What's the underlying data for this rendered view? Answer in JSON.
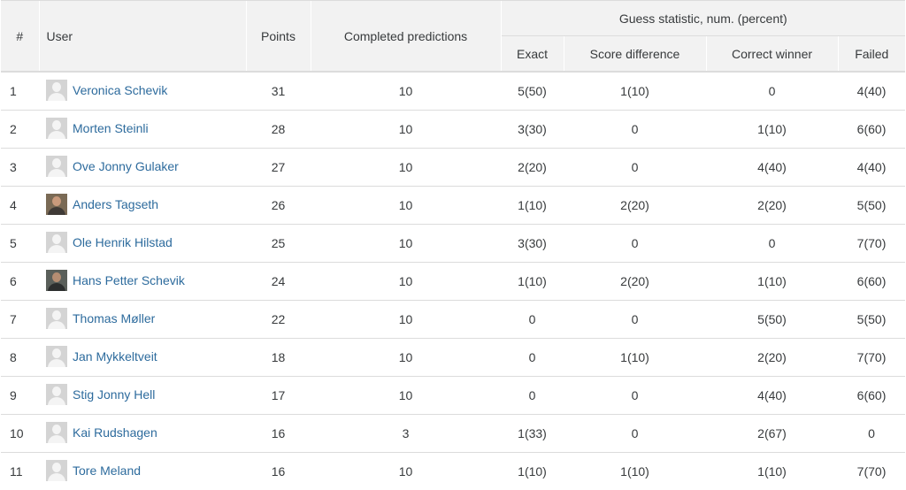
{
  "header": {
    "rank": "#",
    "user": "User",
    "points": "Points",
    "completed": "Completed predictions",
    "guess_group": "Guess statistic, num. (percent)",
    "exact": "Exact",
    "score_difference": "Score difference",
    "correct_winner": "Correct winner",
    "failed": "Failed"
  },
  "rows": [
    {
      "rank": "1",
      "user": "Veronica Schevik",
      "avatar": "default-avatar-icon",
      "points": "31",
      "completed": "10",
      "exact": "5(50)",
      "score_diff": "1(10)",
      "winner": "0",
      "failed": "4(40)"
    },
    {
      "rank": "2",
      "user": "Morten Steinli",
      "avatar": "default-avatar-icon",
      "points": "28",
      "completed": "10",
      "exact": "3(30)",
      "score_diff": "0",
      "winner": "1(10)",
      "failed": "6(60)"
    },
    {
      "rank": "3",
      "user": "Ove Jonny Gulaker",
      "avatar": "default-avatar-icon",
      "points": "27",
      "completed": "10",
      "exact": "2(20)",
      "score_diff": "0",
      "winner": "4(40)",
      "failed": "4(40)"
    },
    {
      "rank": "4",
      "user": "Anders Tagseth",
      "avatar": "photo-avatar",
      "points": "26",
      "completed": "10",
      "exact": "1(10)",
      "score_diff": "2(20)",
      "winner": "2(20)",
      "failed": "5(50)"
    },
    {
      "rank": "5",
      "user": "Ole Henrik Hilstad",
      "avatar": "default-avatar-icon",
      "points": "25",
      "completed": "10",
      "exact": "3(30)",
      "score_diff": "0",
      "winner": "0",
      "failed": "7(70)"
    },
    {
      "rank": "6",
      "user": "Hans Petter Schevik",
      "avatar": "photo-avatar",
      "points": "24",
      "completed": "10",
      "exact": "1(10)",
      "score_diff": "2(20)",
      "winner": "1(10)",
      "failed": "6(60)"
    },
    {
      "rank": "7",
      "user": "Thomas Møller",
      "avatar": "default-avatar-icon",
      "points": "22",
      "completed": "10",
      "exact": "0",
      "score_diff": "0",
      "winner": "5(50)",
      "failed": "5(50)"
    },
    {
      "rank": "8",
      "user": "Jan Mykkeltveit",
      "avatar": "default-avatar-icon",
      "points": "18",
      "completed": "10",
      "exact": "0",
      "score_diff": "1(10)",
      "winner": "2(20)",
      "failed": "7(70)"
    },
    {
      "rank": "9",
      "user": "Stig Jonny Hell",
      "avatar": "default-avatar-icon",
      "points": "17",
      "completed": "10",
      "exact": "0",
      "score_diff": "0",
      "winner": "4(40)",
      "failed": "6(60)"
    },
    {
      "rank": "10",
      "user": "Kai Rudshagen",
      "avatar": "default-avatar-icon",
      "points": "16",
      "completed": "3",
      "exact": "1(33)",
      "score_diff": "0",
      "winner": "2(67)",
      "failed": "0"
    },
    {
      "rank": "11",
      "user": "Tore Meland",
      "avatar": "default-avatar-icon",
      "points": "16",
      "completed": "10",
      "exact": "1(10)",
      "score_diff": "1(10)",
      "winner": "1(10)",
      "failed": "7(70)"
    }
  ],
  "colors": {
    "link": "#2d6b9d",
    "header_bg": "#f2f2f2",
    "border": "#dcdcdc"
  }
}
